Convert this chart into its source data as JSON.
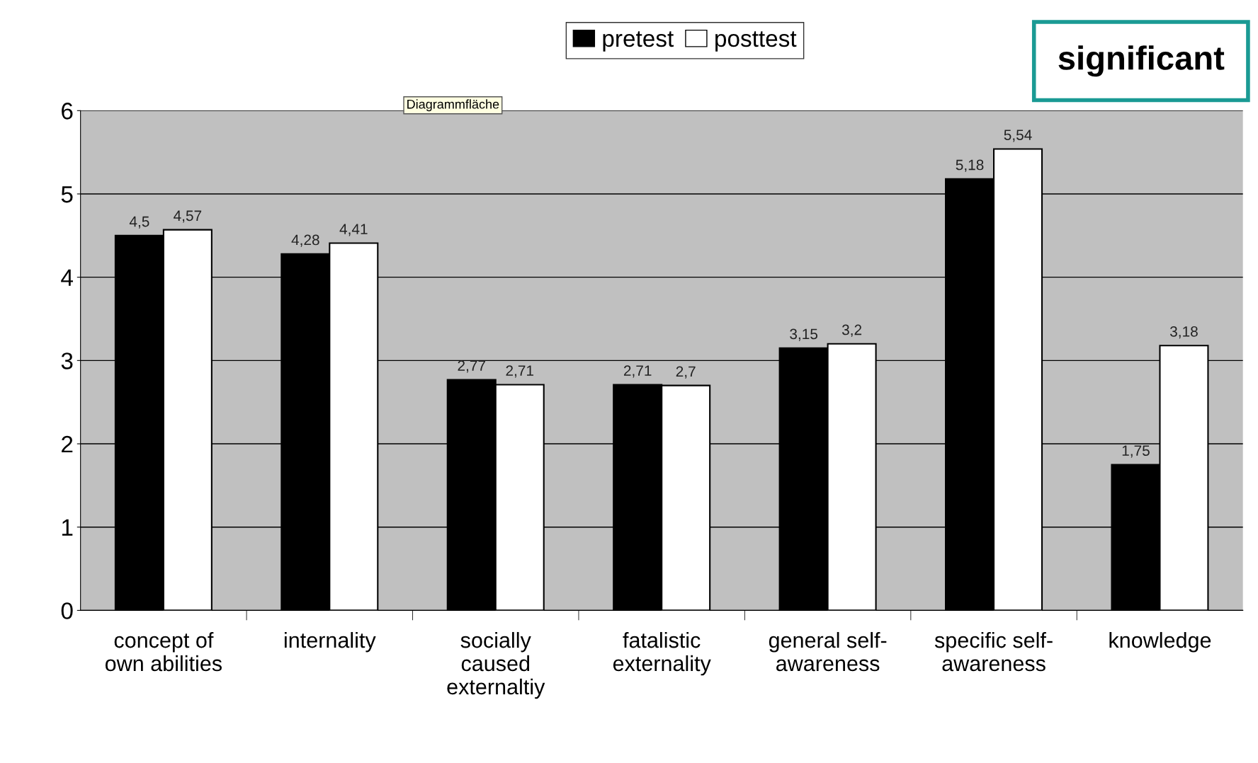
{
  "chart_data": {
    "type": "bar",
    "categories": [
      "concept of\nown abilities",
      "internality",
      "socially\ncaused\nexternaltiy",
      "fatalistic\nexternality",
      "general self-\nawareness",
      "specific self-\nawareness",
      "knowledge"
    ],
    "series": [
      {
        "name": "pretest",
        "color": "#000000",
        "values": [
          4.5,
          4.28,
          2.77,
          2.71,
          3.15,
          5.18,
          1.75
        ],
        "value_labels": [
          "4,5",
          "4,28",
          "2,77",
          "2,71",
          "3,15",
          "5,18",
          "1,75"
        ]
      },
      {
        "name": "posttest",
        "color": "#ffffff",
        "values": [
          4.57,
          4.41,
          2.71,
          2.7,
          3.2,
          5.54,
          3.18
        ],
        "value_labels": [
          "4,57",
          "4,41",
          "2,71",
          "2,7",
          "3,2",
          "5,54",
          "3,18"
        ]
      }
    ],
    "ylim": [
      0,
      6
    ],
    "yticks": [
      0,
      1,
      2,
      3,
      4,
      5,
      6
    ],
    "grid": "y",
    "legend": "top",
    "annotations": [
      "significant",
      "Diagrammfläche"
    ]
  }
}
